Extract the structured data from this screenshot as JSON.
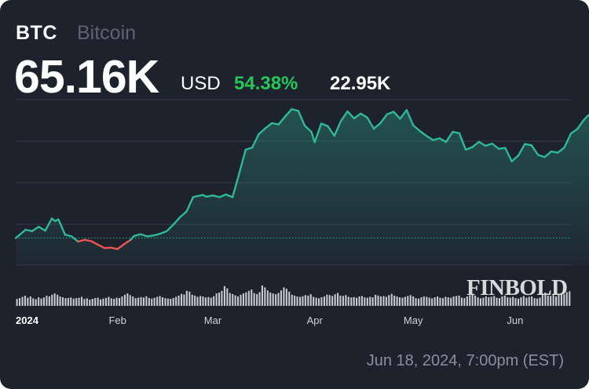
{
  "header": {
    "symbol": "BTC",
    "name": "Bitcoin",
    "price": "65.16K",
    "currency": "USD",
    "change_percent": "54.38%",
    "change_value": "22.95K"
  },
  "watermark": "FINBOLD",
  "timestamp": "Jun 18, 2024, 7:00pm (EST)",
  "colors": {
    "background": "#1e222d",
    "up_line": "#2fb89c",
    "down_line": "#f05454",
    "change_positive": "#26c65a",
    "volume": "#c8cad0"
  },
  "chart_data": {
    "type": "area",
    "title": "",
    "xlabel": "",
    "ylabel": "",
    "x_tick_labels": [
      "2024",
      "Feb",
      "Mar",
      "Apr",
      "May",
      "Jun"
    ],
    "x_range": [
      "2024-01-01",
      "2024-06-18"
    ],
    "y_range": [
      36000,
      74000
    ],
    "baseline_price": 42210,
    "grid": "horizontal",
    "series": [
      {
        "values": [
          [
            0,
            42200
          ],
          [
            3,
            44100
          ],
          [
            5,
            43800
          ],
          [
            7,
            44800
          ],
          [
            9,
            43900
          ],
          [
            11,
            46700
          ],
          [
            12,
            46100
          ],
          [
            13,
            46500
          ],
          [
            15,
            43000
          ],
          [
            17,
            42600
          ],
          [
            19,
            41400
          ],
          [
            21,
            41800
          ],
          [
            23,
            41500
          ],
          [
            25,
            40700
          ],
          [
            27,
            39900
          ],
          [
            29,
            40000
          ],
          [
            31,
            39700
          ],
          [
            33,
            40800
          ],
          [
            35,
            41800
          ],
          [
            36,
            42700
          ],
          [
            38,
            43100
          ],
          [
            40,
            42600
          ],
          [
            42,
            42800
          ],
          [
            44,
            43200
          ],
          [
            46,
            43800
          ],
          [
            48,
            45300
          ],
          [
            50,
            47000
          ],
          [
            52,
            48300
          ],
          [
            54,
            51600
          ],
          [
            55,
            51800
          ],
          [
            57,
            52100
          ],
          [
            58,
            51700
          ],
          [
            60,
            52000
          ],
          [
            62,
            51600
          ],
          [
            64,
            52200
          ],
          [
            66,
            51600
          ],
          [
            68,
            57000
          ],
          [
            70,
            62500
          ],
          [
            72,
            63000
          ],
          [
            74,
            66100
          ],
          [
            76,
            67400
          ],
          [
            78,
            68600
          ],
          [
            80,
            68300
          ],
          [
            82,
            70100
          ],
          [
            84,
            71800
          ],
          [
            86,
            71400
          ],
          [
            88,
            68000
          ],
          [
            90,
            66600
          ],
          [
            91,
            64200
          ],
          [
            93,
            68500
          ],
          [
            95,
            67900
          ],
          [
            97,
            65700
          ],
          [
            99,
            69100
          ],
          [
            101,
            71300
          ],
          [
            103,
            69700
          ],
          [
            105,
            70800
          ],
          [
            107,
            69900
          ],
          [
            109,
            67300
          ],
          [
            111,
            68600
          ],
          [
            113,
            70600
          ],
          [
            115,
            71200
          ],
          [
            117,
            69600
          ],
          [
            119,
            71600
          ],
          [
            121,
            68100
          ],
          [
            123,
            66800
          ],
          [
            125,
            65700
          ],
          [
            127,
            64700
          ],
          [
            129,
            65100
          ],
          [
            131,
            64300
          ],
          [
            133,
            66600
          ],
          [
            135,
            66300
          ],
          [
            137,
            62500
          ],
          [
            139,
            63100
          ],
          [
            141,
            64300
          ],
          [
            143,
            63400
          ],
          [
            145,
            63900
          ],
          [
            147,
            62700
          ],
          [
            149,
            62900
          ],
          [
            151,
            59800
          ],
          [
            153,
            61200
          ],
          [
            155,
            63800
          ],
          [
            157,
            63500
          ],
          [
            159,
            61300
          ],
          [
            161,
            60800
          ],
          [
            163,
            62100
          ],
          [
            165,
            61800
          ],
          [
            167,
            63000
          ],
          [
            169,
            66200
          ],
          [
            171,
            67300
          ],
          [
            173,
            69400
          ],
          [
            175,
            70900
          ],
          [
            177,
            68500
          ],
          [
            179,
            69300
          ],
          [
            181,
            67800
          ],
          [
            183,
            69500
          ],
          [
            185,
            68800
          ],
          [
            187,
            67700
          ],
          [
            189,
            70100
          ],
          [
            191,
            71200
          ],
          [
            193,
            70600
          ],
          [
            195,
            69900
          ],
          [
            197,
            66800
          ],
          [
            199,
            66300
          ],
          [
            200,
            65800
          ],
          [
            201,
            65600
          ],
          [
            202,
            66800
          ],
          [
            203,
            66400
          ],
          [
            204,
            65900
          ],
          [
            205,
            65160
          ]
        ]
      }
    ],
    "volume": [
      32,
      36,
      42,
      47,
      38,
      44,
      35,
      31,
      40,
      34,
      39,
      47,
      44,
      52,
      58,
      52,
      44,
      40,
      36,
      37,
      39,
      34,
      36,
      38,
      42,
      32,
      35,
      29,
      33,
      36,
      38,
      30,
      34,
      37,
      42,
      35,
      33,
      38,
      36,
      44,
      52,
      58,
      50,
      44,
      36,
      38,
      41,
      39,
      45,
      37,
      34,
      38,
      42,
      46,
      40,
      36,
      34,
      33,
      37,
      42,
      48,
      56,
      53,
      70,
      66,
      52,
      48,
      42,
      46,
      44,
      39,
      41,
      38,
      45,
      58,
      62,
      70,
      92,
      82,
      60,
      55,
      49,
      44,
      52,
      58,
      63,
      70,
      76,
      60,
      55,
      64,
      95,
      86,
      72,
      62,
      58,
      54,
      60,
      72,
      86,
      80,
      66,
      52,
      48,
      44,
      42,
      45,
      50,
      48,
      54,
      42,
      38,
      35,
      40,
      44,
      52,
      50,
      46,
      54,
      60,
      48,
      46,
      50,
      42,
      39,
      41,
      38,
      44,
      46,
      40,
      38,
      42,
      40,
      52,
      48,
      44,
      46,
      42,
      50,
      56,
      48,
      44,
      40,
      38,
      42,
      46,
      50,
      44,
      36,
      34,
      40,
      44,
      42,
      38,
      35,
      40,
      44,
      38,
      36,
      42,
      40,
      38,
      44,
      46,
      48,
      38,
      36,
      44,
      50,
      56,
      48,
      40,
      35,
      38,
      44,
      40,
      42,
      46,
      38,
      36,
      44,
      48,
      40,
      38,
      42,
      36,
      34,
      40,
      46,
      38,
      42,
      44,
      36,
      34,
      38,
      52,
      62,
      48,
      46,
      50,
      44,
      52,
      60,
      54,
      64,
      68
    ],
    "volume_unit": "relative"
  }
}
